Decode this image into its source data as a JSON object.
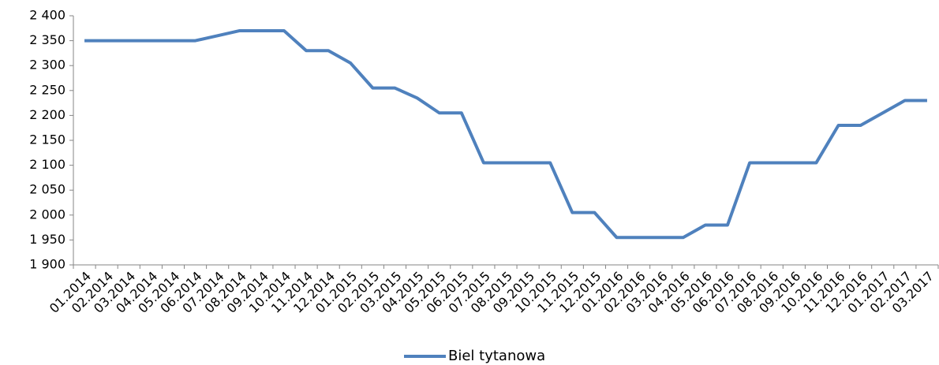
{
  "chart_data": {
    "type": "line",
    "categories": [
      "01.2014",
      "02.2014",
      "03.2014",
      "04.2014",
      "05.2014",
      "06.2014",
      "07.2014",
      "08.2014",
      "09.2014",
      "10.2014",
      "11.2014",
      "12.2014",
      "01.2015",
      "02.2015",
      "03.2015",
      "04.2015",
      "05.2015",
      "06.2015",
      "07.2015",
      "08.2015",
      "09.2015",
      "10.2015",
      "11.2015",
      "12.2015",
      "01.2016",
      "02.2016",
      "03.2016",
      "04.2016",
      "05.2016",
      "06.2016",
      "07.2016",
      "08.2016",
      "09.2016",
      "10.2016",
      "11.2016",
      "12.2016",
      "01.2017",
      "02.2017",
      "03.2017"
    ],
    "series": [
      {
        "name": "Biel tytanowa",
        "color": "#4f81bd",
        "values": [
          2350,
          2350,
          2350,
          2350,
          2350,
          2350,
          2360,
          2370,
          2370,
          2370,
          2330,
          2330,
          2305,
          2255,
          2255,
          2235,
          2205,
          2205,
          2105,
          2105,
          2105,
          2105,
          2005,
          2005,
          1955,
          1955,
          1955,
          1955,
          1980,
          1980,
          2105,
          2105,
          2105,
          2105,
          2180,
          2180,
          2205,
          2230,
          2230
        ]
      }
    ],
    "ylim": [
      1900,
      2400
    ],
    "yticks": [
      {
        "value": 1900,
        "label": "1 900"
      },
      {
        "value": 1950,
        "label": "1 950"
      },
      {
        "value": 2000,
        "label": "2 000"
      },
      {
        "value": 2050,
        "label": "2 050"
      },
      {
        "value": 2100,
        "label": "2 100"
      },
      {
        "value": 2150,
        "label": "2 150"
      },
      {
        "value": 2200,
        "label": "2 200"
      },
      {
        "value": 2250,
        "label": "2 250"
      },
      {
        "value": 2300,
        "label": "2 300"
      },
      {
        "value": 2350,
        "label": "2 350"
      },
      {
        "value": 2400,
        "label": "2 400"
      }
    ],
    "grid": false,
    "legend": "bottom"
  }
}
